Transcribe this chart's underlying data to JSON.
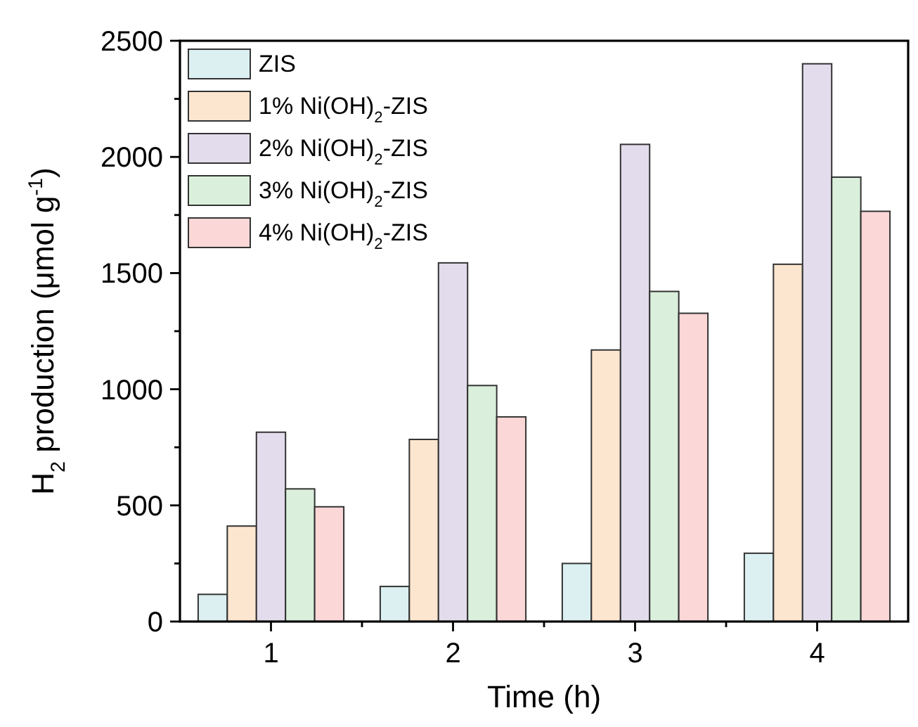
{
  "chart_data": {
    "type": "bar",
    "xlabel": "Time (h)",
    "ylabel": "H$_{2}$ production (μmol g$^{-1}$)",
    "categories": [
      "1",
      "2",
      "3",
      "4"
    ],
    "series": [
      {
        "name": "ZIS",
        "color": "#dcf0f2",
        "values": [
          117,
          151,
          250,
          294
        ]
      },
      {
        "name": "1% Ni(OH)$_{2}$-ZIS",
        "color": "#fde6cf",
        "values": [
          411,
          784,
          1169,
          1538
        ]
      },
      {
        "name": "2% Ni(OH)$_{2}$-ZIS",
        "color": "#e3dcec",
        "values": [
          815,
          1544,
          2054,
          2401
        ]
      },
      {
        "name": "3% Ni(OH)$_{2}$-ZIS",
        "color": "#daf0dc",
        "values": [
          571,
          1016,
          1421,
          1913
        ]
      },
      {
        "name": "4% Ni(OH)$_{2}$-ZIS",
        "color": "#fbd7d7",
        "values": [
          494,
          881,
          1327,
          1766
        ]
      }
    ],
    "ylim": [
      0,
      2500
    ],
    "yticks": [
      0,
      {
        "value": 250,
        "label": null
      },
      500,
      {
        "value": 750,
        "label": null
      },
      1000,
      {
        "value": 1250,
        "label": null
      },
      1500,
      {
        "value": 1750,
        "label": null
      },
      2000,
      {
        "value": 2250,
        "label": null
      },
      2500
    ],
    "legend": "top left",
    "grid": false
  }
}
